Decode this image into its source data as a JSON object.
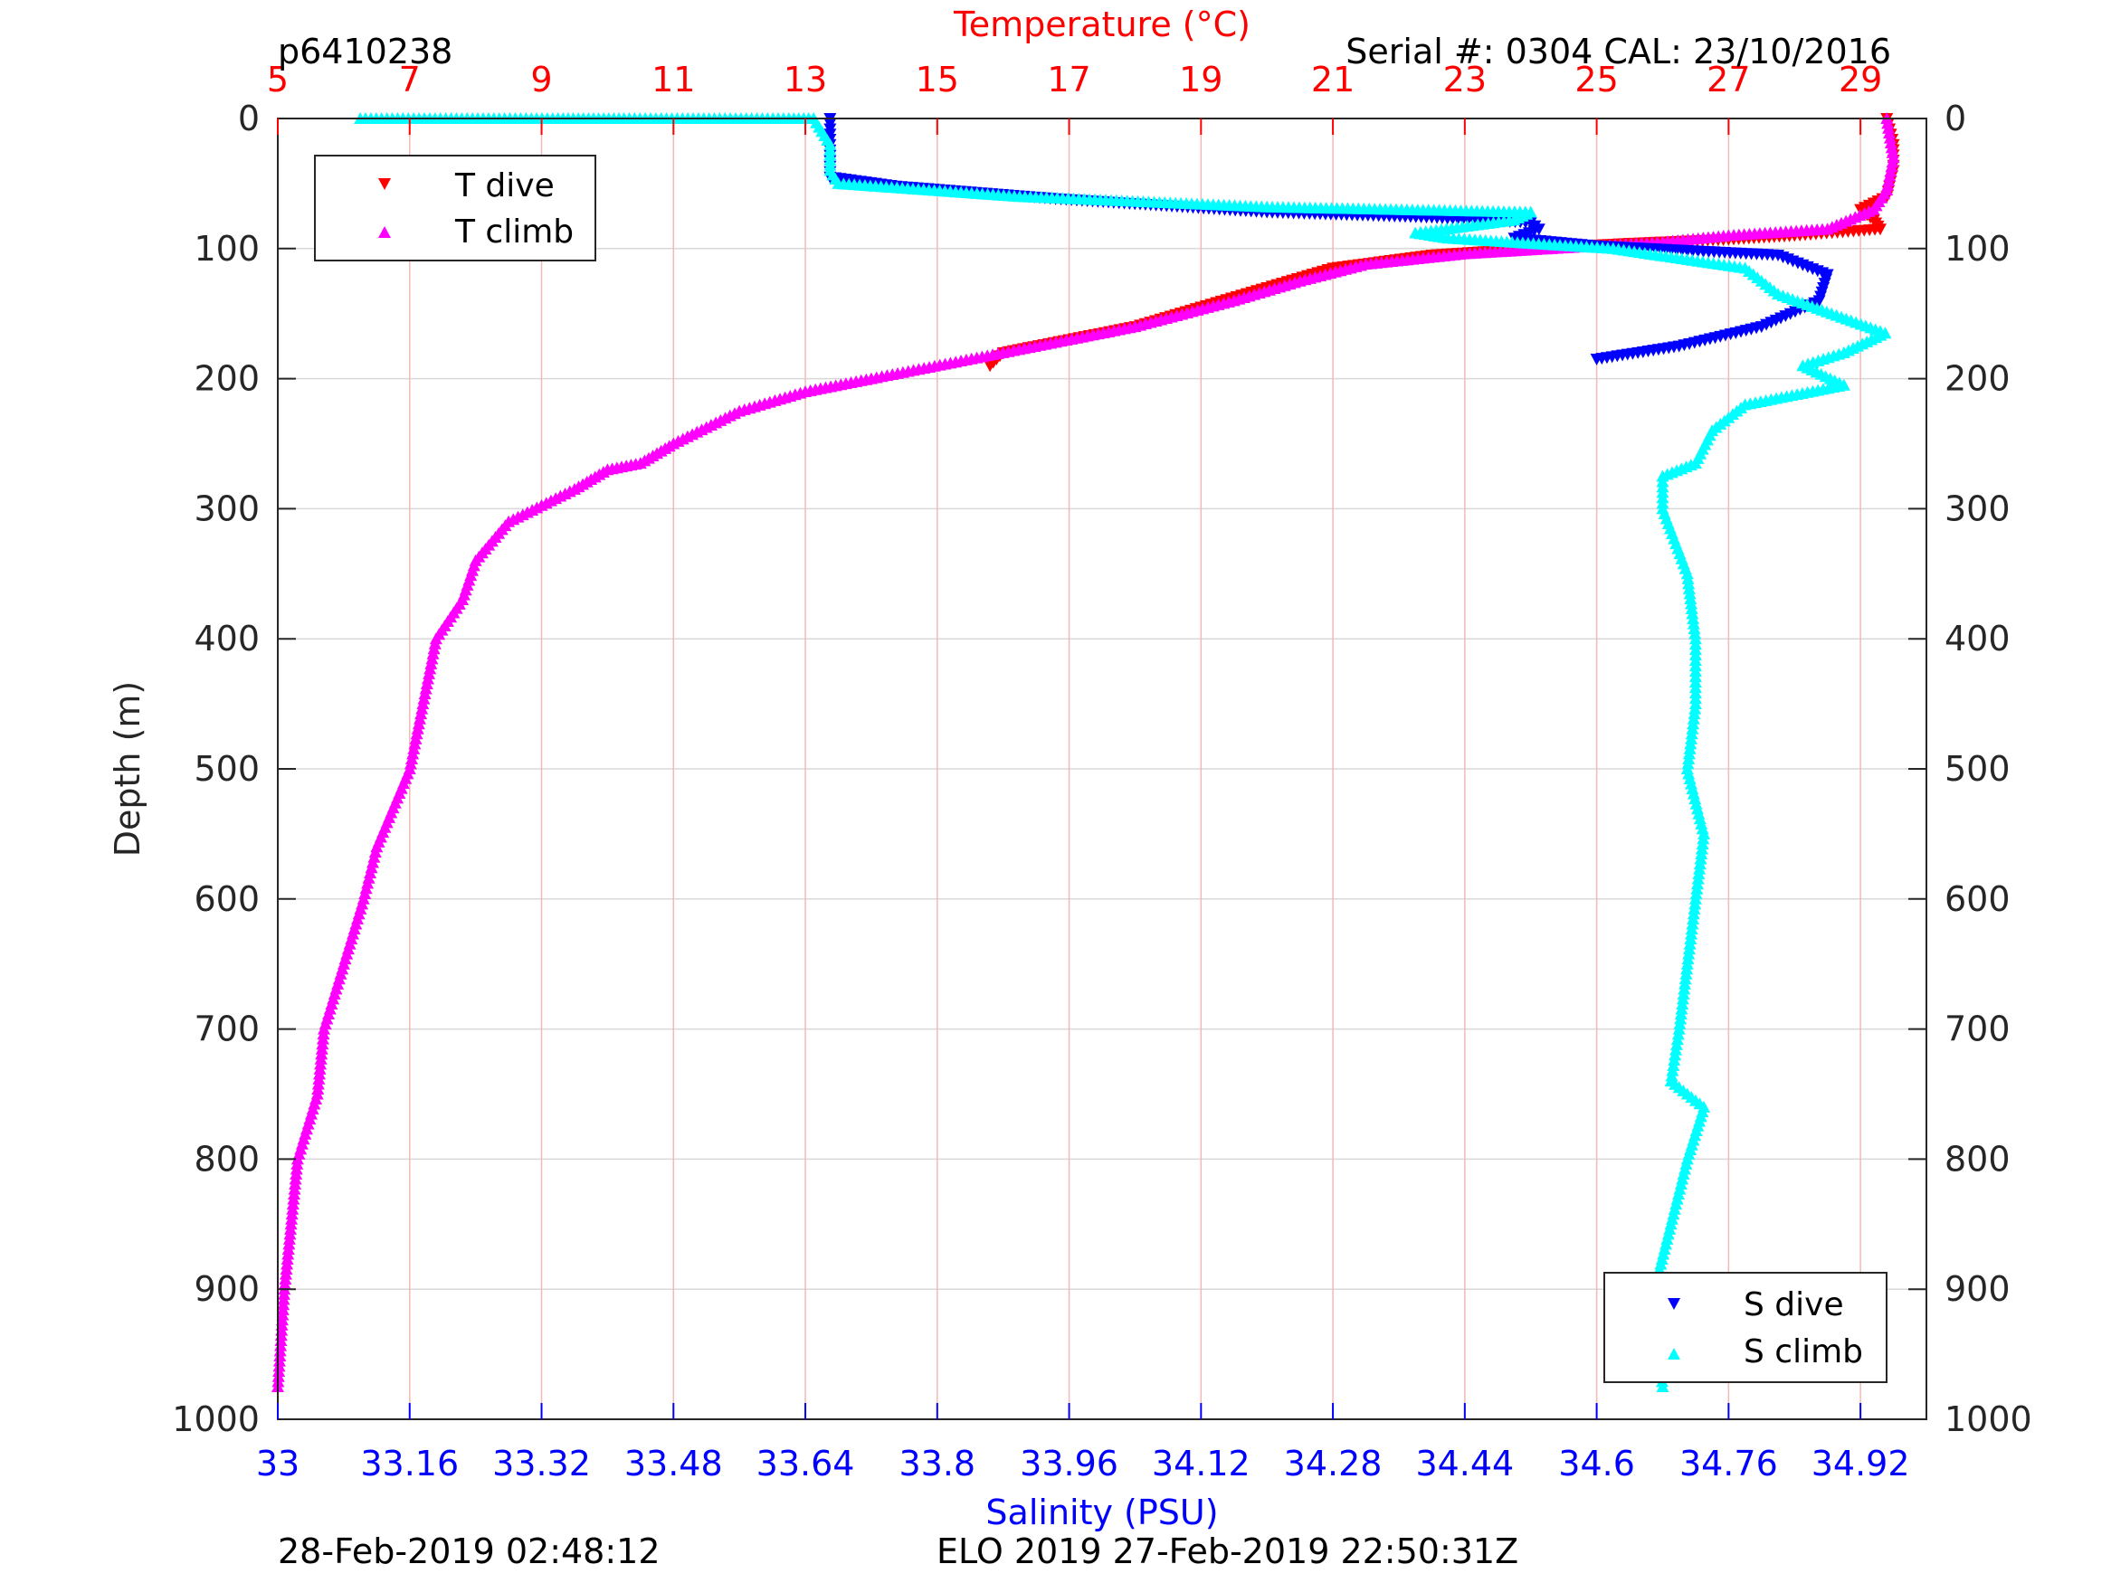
{
  "header": {
    "profile_id": "p6410238",
    "serial": "Serial #: 0304  CAL: 23/10/2016"
  },
  "footer": {
    "plot_time": "28-Feb-2019 02:48:12",
    "mission": "ELO 2019 27-Feb-2019 22:50:31Z"
  },
  "legend_t": {
    "dive": "T dive",
    "climb": "T climb"
  },
  "legend_s": {
    "dive": "S dive",
    "climb": "S climb"
  },
  "colors": {
    "temp_axis": "#ff0000",
    "sal_axis": "#0000ff",
    "t_dive": "#ff0000",
    "t_climb": "#ff00ff",
    "s_dive": "#0000ff",
    "s_climb": "#00ffff",
    "grid_temp": "#f4b8b8",
    "grid_depth": "#d9d9d9"
  },
  "chart_data": {
    "type": "scatter",
    "title": "",
    "ylabel": "Depth (m)",
    "ylim": [
      0,
      1000
    ],
    "y_reversed": true,
    "yticks": [
      0,
      100,
      200,
      300,
      400,
      500,
      600,
      700,
      800,
      900,
      1000
    ],
    "temperature_axis": {
      "label": "Temperature (°C)",
      "position": "top",
      "lim": [
        5,
        30
      ],
      "ticks": [
        5,
        7,
        9,
        11,
        13,
        15,
        17,
        19,
        21,
        23,
        25,
        27,
        29
      ]
    },
    "salinity_axis": {
      "label": "Salinity (PSU)",
      "position": "bottom",
      "lim": [
        33,
        35
      ],
      "ticks": [
        "33",
        "33.16",
        "33.32",
        "33.48",
        "33.64",
        "33.8",
        "33.96",
        "34.12",
        "34.28",
        "34.44",
        "34.6",
        "34.76",
        "34.92"
      ]
    },
    "grid": "on",
    "series": [
      {
        "name": "T dive",
        "axis": "temperature",
        "marker": "triangle-down",
        "points": [
          [
            29.4,
            0
          ],
          [
            29.5,
            20
          ],
          [
            29.5,
            40
          ],
          [
            29.4,
            60
          ],
          [
            29.0,
            70
          ],
          [
            29.2,
            78
          ],
          [
            29.3,
            85
          ],
          [
            28.0,
            90
          ],
          [
            27.0,
            93
          ],
          [
            25.5,
            96
          ],
          [
            24.0,
            100
          ],
          [
            22.5,
            105
          ],
          [
            21.0,
            115
          ],
          [
            20.0,
            130
          ],
          [
            19.0,
            145
          ],
          [
            18.0,
            160
          ],
          [
            17.0,
            170
          ],
          [
            16.0,
            180
          ],
          [
            15.8,
            190
          ]
        ]
      },
      {
        "name": "T climb",
        "axis": "temperature",
        "marker": "triangle-up",
        "points": [
          [
            29.4,
            0
          ],
          [
            29.5,
            30
          ],
          [
            29.4,
            55
          ],
          [
            29.2,
            70
          ],
          [
            28.5,
            85
          ],
          [
            27.0,
            90
          ],
          [
            26.0,
            95
          ],
          [
            24.0,
            101
          ],
          [
            23.0,
            104
          ],
          [
            21.5,
            112
          ],
          [
            20.5,
            125
          ],
          [
            19.5,
            140
          ],
          [
            18.0,
            160
          ],
          [
            16.0,
            180
          ],
          [
            14.0,
            200
          ],
          [
            13.0,
            210
          ],
          [
            12.0,
            225
          ],
          [
            11.0,
            250
          ],
          [
            10.5,
            265
          ],
          [
            10.0,
            270
          ],
          [
            9.5,
            285
          ],
          [
            8.5,
            310
          ],
          [
            8.0,
            340
          ],
          [
            7.8,
            370
          ],
          [
            7.4,
            400
          ],
          [
            7.2,
            450
          ],
          [
            7.0,
            500
          ],
          [
            6.5,
            560
          ],
          [
            6.3,
            600
          ],
          [
            6.0,
            650
          ],
          [
            5.7,
            700
          ],
          [
            5.6,
            750
          ],
          [
            5.3,
            800
          ],
          [
            5.2,
            850
          ],
          [
            5.1,
            900
          ],
          [
            5.0,
            975
          ]
        ]
      },
      {
        "name": "S dive",
        "axis": "salinity",
        "marker": "triangle-down",
        "points": [
          [
            33.67,
            0
          ],
          [
            33.67,
            20
          ],
          [
            33.67,
            45
          ],
          [
            33.75,
            52
          ],
          [
            33.95,
            62
          ],
          [
            34.2,
            72
          ],
          [
            34.4,
            76
          ],
          [
            34.52,
            80
          ],
          [
            34.53,
            85
          ],
          [
            34.5,
            92
          ],
          [
            34.6,
            98
          ],
          [
            34.82,
            105
          ],
          [
            34.88,
            120
          ],
          [
            34.87,
            140
          ],
          [
            34.8,
            160
          ],
          [
            34.7,
            175
          ],
          [
            34.6,
            185
          ]
        ]
      },
      {
        "name": "S climb",
        "axis": "salinity",
        "marker": "triangle-up",
        "points": [
          [
            33.1,
            0
          ],
          [
            33.34,
            0
          ],
          [
            33.42,
            0
          ],
          [
            33.62,
            0
          ],
          [
            33.65,
            0
          ],
          [
            33.67,
            20
          ],
          [
            33.67,
            40
          ],
          [
            33.68,
            50
          ],
          [
            33.9,
            60
          ],
          [
            34.2,
            68
          ],
          [
            34.52,
            72
          ],
          [
            34.5,
            78
          ],
          [
            34.38,
            88
          ],
          [
            34.42,
            92
          ],
          [
            34.62,
            100
          ],
          [
            34.78,
            115
          ],
          [
            34.82,
            135
          ],
          [
            34.95,
            165
          ],
          [
            34.9,
            180
          ],
          [
            34.85,
            190
          ],
          [
            34.9,
            205
          ],
          [
            34.78,
            220
          ],
          [
            34.74,
            240
          ],
          [
            34.72,
            265
          ],
          [
            34.68,
            275
          ],
          [
            34.68,
            300
          ],
          [
            34.71,
            350
          ],
          [
            34.72,
            400
          ],
          [
            34.72,
            450
          ],
          [
            34.71,
            500
          ],
          [
            34.73,
            550
          ],
          [
            34.72,
            600
          ],
          [
            34.71,
            650
          ],
          [
            34.7,
            700
          ],
          [
            34.69,
            740
          ],
          [
            34.73,
            760
          ],
          [
            34.71,
            800
          ],
          [
            34.69,
            850
          ],
          [
            34.67,
            900
          ],
          [
            34.68,
            975
          ]
        ]
      }
    ]
  }
}
